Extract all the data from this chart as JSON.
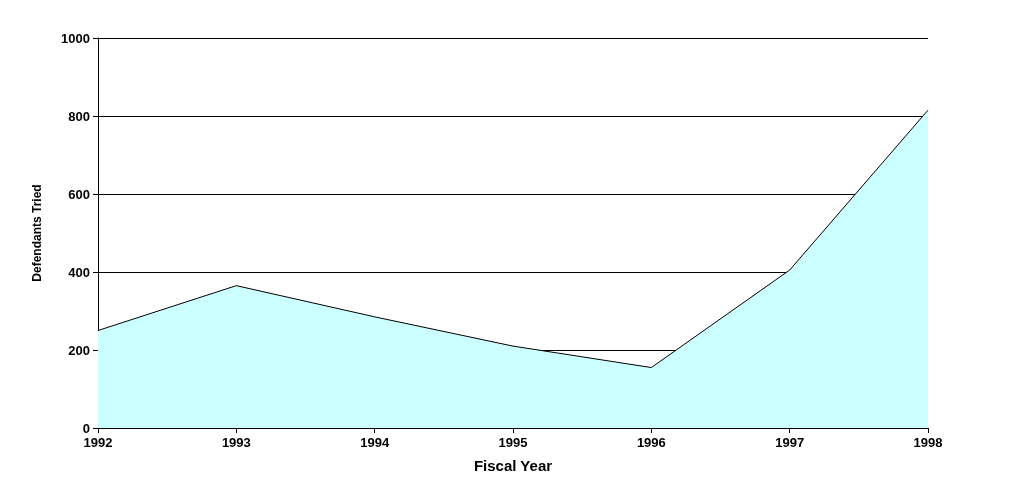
{
  "chart_data": {
    "type": "area",
    "xlabel": "Fiscal Year",
    "ylabel": "Defendants Tried",
    "categories": [
      "1992",
      "1993",
      "1994",
      "1995",
      "1996",
      "1997",
      "1998"
    ],
    "series": [
      {
        "color": "#ccffff",
        "values": [
          250,
          365,
          285,
          210,
          155,
          405,
          815
        ]
      }
    ],
    "ylim": [
      0,
      1000
    ],
    "yticks": [
      0,
      200,
      400,
      600,
      800,
      1000
    ],
    "grid": "y"
  }
}
